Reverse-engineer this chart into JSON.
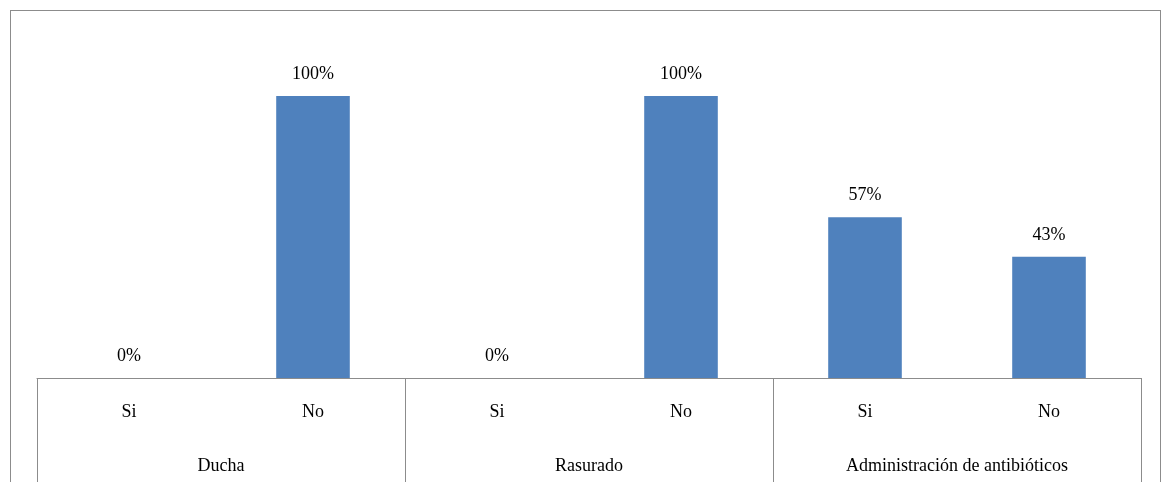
{
  "chart_data": {
    "type": "bar",
    "categories": [
      "Si",
      "No",
      "Si",
      "No",
      "Si",
      "No"
    ],
    "values": [
      0,
      100,
      0,
      100,
      57,
      43
    ],
    "value_labels": [
      "0%",
      "100%",
      "0%",
      "100%",
      "57%",
      "43%"
    ],
    "color": "#4f81bd",
    "annotations": [
      "Ducha",
      "Rasurado",
      "Administración de antibióticos"
    ]
  }
}
